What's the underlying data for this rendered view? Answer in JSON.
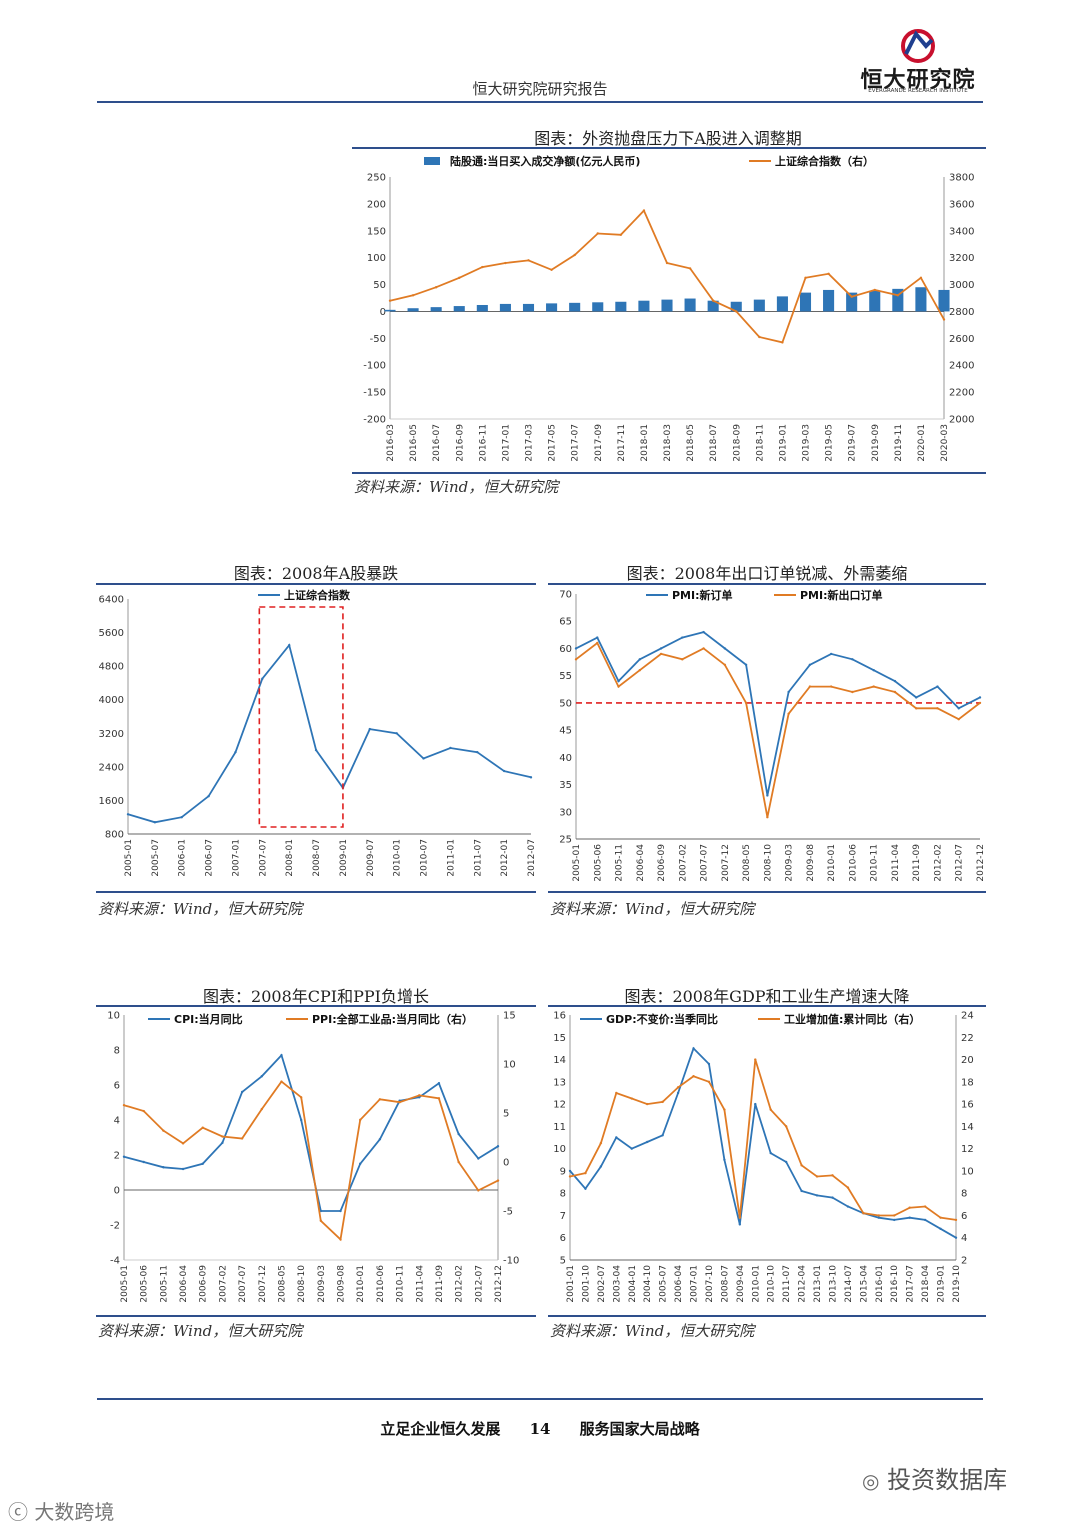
{
  "header": {
    "report_title": "恒大研究院研究报告",
    "logo_text": "恒大研究院",
    "logo_subtext": "EVERGRANDE RESEARCH INSTITUTE"
  },
  "colors": {
    "blue": "#2e75b6",
    "orange": "#e07b24",
    "red": "#e02020",
    "rule": "#2e4f8c"
  },
  "charts": {
    "c1": {
      "title": "图表：外资抛盘压力下A股进入调整期",
      "source": "资料来源：Wind，恒大研究院"
    },
    "c2": {
      "title": "图表：2008年A股暴跌",
      "source": "资料来源：Wind，恒大研究院"
    },
    "c3": {
      "title": "图表：2008年出口订单锐减、外需萎缩",
      "source": "资料来源：Wind，恒大研究院"
    },
    "c4": {
      "title": "图表：2008年CPI和PPI负增长",
      "source": "资料来源：Wind，恒大研究院"
    },
    "c5": {
      "title": "图表：2008年GDP和工业生产增速大降",
      "source": "资料来源：Wind，恒大研究院"
    }
  },
  "chart_data": [
    {
      "id": "c1",
      "type": "bar+line",
      "title": "图表：外资抛盘压力下A股进入调整期",
      "categories": [
        "2016-03",
        "2016-05",
        "2016-07",
        "2016-09",
        "2016-11",
        "2017-01",
        "2017-03",
        "2017-05",
        "2017-07",
        "2017-09",
        "2017-11",
        "2018-01",
        "2018-03",
        "2018-05",
        "2018-07",
        "2018-09",
        "2018-11",
        "2019-01",
        "2019-03",
        "2019-05",
        "2019-07",
        "2019-09",
        "2019-11",
        "2020-01",
        "2020-03"
      ],
      "series": [
        {
          "name": "陆股通:当日买入成交净额(亿元人民币)",
          "axis": "left",
          "kind": "bar",
          "values": [
            3,
            6,
            8,
            10,
            12,
            14,
            14,
            15,
            16,
            17,
            18,
            20,
            22,
            24,
            20,
            18,
            22,
            28,
            35,
            40,
            35,
            38,
            42,
            45,
            40
          ]
        },
        {
          "name": "上证综合指数（右）",
          "axis": "right",
          "kind": "line",
          "values": [
            2880,
            2920,
            2980,
            3050,
            3130,
            3160,
            3180,
            3110,
            3220,
            3380,
            3370,
            3550,
            3160,
            3120,
            2880,
            2800,
            2610,
            2570,
            3050,
            3080,
            2910,
            2960,
            2920,
            3050,
            2740
          ]
        }
      ],
      "ylim_left": [
        -200,
        250
      ],
      "yticks_left": [
        -200,
        -150,
        -100,
        -50,
        0,
        50,
        100,
        150,
        200,
        250
      ],
      "ylim_right": [
        2000,
        3800
      ],
      "yticks_right": [
        2000,
        2200,
        2400,
        2600,
        2800,
        3000,
        3200,
        3400,
        3600,
        3800
      ]
    },
    {
      "id": "c2",
      "type": "line",
      "title": "图表：2008年A股暴跌",
      "categories": [
        "2005-01",
        "2005-07",
        "2006-01",
        "2006-07",
        "2007-01",
        "2007-07",
        "2008-01",
        "2008-07",
        "2009-01",
        "2009-07",
        "2010-01",
        "2010-07",
        "2011-01",
        "2011-07",
        "2012-01",
        "2012-07"
      ],
      "series": [
        {
          "name": "上证综合指数",
          "values": [
            1270,
            1080,
            1200,
            1700,
            2750,
            4500,
            5300,
            2800,
            1900,
            3300,
            3200,
            2600,
            2850,
            2750,
            2300,
            2150
          ]
        }
      ],
      "ylim": [
        800,
        6400
      ],
      "yticks": [
        800,
        1600,
        2400,
        3200,
        4000,
        4800,
        5600,
        6400
      ]
    },
    {
      "id": "c3",
      "type": "line",
      "title": "图表：2008年出口订单锐减、外需萎缩",
      "categories": [
        "2005-01",
        "2005-06",
        "2005-11",
        "2006-04",
        "2006-09",
        "2007-02",
        "2007-07",
        "2007-12",
        "2008-05",
        "2008-10",
        "2009-03",
        "2009-08",
        "2010-01",
        "2010-06",
        "2010-11",
        "2011-04",
        "2011-09",
        "2012-02",
        "2012-07",
        "2012-12"
      ],
      "series": [
        {
          "name": "PMI:新订单",
          "values": [
            60,
            62,
            54,
            58,
            60,
            62,
            63,
            60,
            57,
            33,
            52,
            57,
            59,
            58,
            56,
            54,
            51,
            53,
            49,
            51
          ]
        },
        {
          "name": "PMI:新出口订单",
          "values": [
            58,
            61,
            53,
            56,
            59,
            58,
            60,
            57,
            50,
            29,
            48,
            53,
            53,
            52,
            53,
            52,
            49,
            49,
            47,
            50
          ]
        }
      ],
      "reference_line": 50,
      "ylim": [
        25,
        70
      ],
      "yticks": [
        25,
        30,
        35,
        40,
        45,
        50,
        55,
        60,
        65,
        70
      ]
    },
    {
      "id": "c4",
      "type": "line",
      "title": "图表：2008年CPI和PPI负增长",
      "categories": [
        "2005-01",
        "2005-06",
        "2005-11",
        "2006-04",
        "2006-09",
        "2007-02",
        "2007-07",
        "2007-12",
        "2008-05",
        "2008-10",
        "2009-03",
        "2009-08",
        "2010-01",
        "2010-06",
        "2010-11",
        "2011-04",
        "2011-09",
        "2012-02",
        "2012-07",
        "2012-12"
      ],
      "series": [
        {
          "name": "CPI:当月同比",
          "axis": "left",
          "values": [
            1.9,
            1.6,
            1.3,
            1.2,
            1.5,
            2.7,
            5.6,
            6.5,
            7.7,
            4.0,
            -1.2,
            -1.2,
            1.5,
            2.9,
            5.1,
            5.3,
            6.1,
            3.2,
            1.8,
            2.5
          ]
        },
        {
          "name": "PPI:全部工业品:当月同比（右）",
          "axis": "right",
          "values": [
            5.8,
            5.2,
            3.2,
            1.9,
            3.5,
            2.6,
            2.4,
            5.4,
            8.2,
            6.6,
            -6.0,
            -7.9,
            4.3,
            6.4,
            6.1,
            6.8,
            6.5,
            0.0,
            -2.9,
            -1.9
          ]
        }
      ],
      "ylim_left": [
        -4,
        10
      ],
      "yticks_left": [
        -4,
        -2,
        0,
        2,
        4,
        6,
        8,
        10
      ],
      "ylim_right": [
        -10,
        15
      ],
      "yticks_right": [
        -10,
        -5,
        0,
        5,
        10,
        15
      ]
    },
    {
      "id": "c5",
      "type": "line",
      "title": "图表：2008年GDP和工业生产增速大降",
      "categories": [
        "2001-01",
        "2001-10",
        "2002-07",
        "2003-04",
        "2004-01",
        "2004-10",
        "2005-07",
        "2006-04",
        "2007-01",
        "2007-10",
        "2008-07",
        "2009-04",
        "2010-01",
        "2010-10",
        "2011-07",
        "2012-04",
        "2013-01",
        "2013-10",
        "2014-07",
        "2015-04",
        "2016-01",
        "2016-10",
        "2017-07",
        "2018-04",
        "2019-01",
        "2019-10"
      ],
      "series": [
        {
          "name": "GDP:不变价:当季同比",
          "axis": "left",
          "values": [
            9.0,
            8.2,
            9.2,
            10.5,
            10.0,
            10.3,
            10.6,
            12.5,
            14.5,
            13.8,
            9.5,
            6.6,
            12.0,
            9.8,
            9.4,
            8.1,
            7.9,
            7.8,
            7.4,
            7.1,
            6.9,
            6.8,
            6.9,
            6.8,
            6.4,
            6.0
          ]
        },
        {
          "name": "工业增加值:累计同比（右）",
          "axis": "right",
          "values": [
            9.5,
            9.8,
            12.5,
            17.0,
            16.5,
            16.0,
            16.2,
            17.5,
            18.5,
            18.0,
            15.5,
            5.8,
            20.0,
            15.5,
            14.0,
            10.5,
            9.5,
            9.6,
            8.5,
            6.2,
            6.0,
            6.0,
            6.7,
            6.8,
            5.8,
            5.6
          ]
        }
      ],
      "ylim_left": [
        5,
        16
      ],
      "yticks_left": [
        5,
        6,
        7,
        8,
        9,
        10,
        11,
        12,
        13,
        14,
        15,
        16
      ],
      "ylim_right": [
        2,
        24
      ],
      "yticks_right": [
        2,
        4,
        6,
        8,
        10,
        12,
        14,
        16,
        18,
        20,
        22,
        24
      ]
    }
  ],
  "footer": {
    "left": "立足企业恒久发展",
    "page": "14",
    "right": "服务国家大局战略"
  },
  "watermarks": {
    "bottom_right": "投资数据库",
    "bottom_left": "大数跨境"
  }
}
